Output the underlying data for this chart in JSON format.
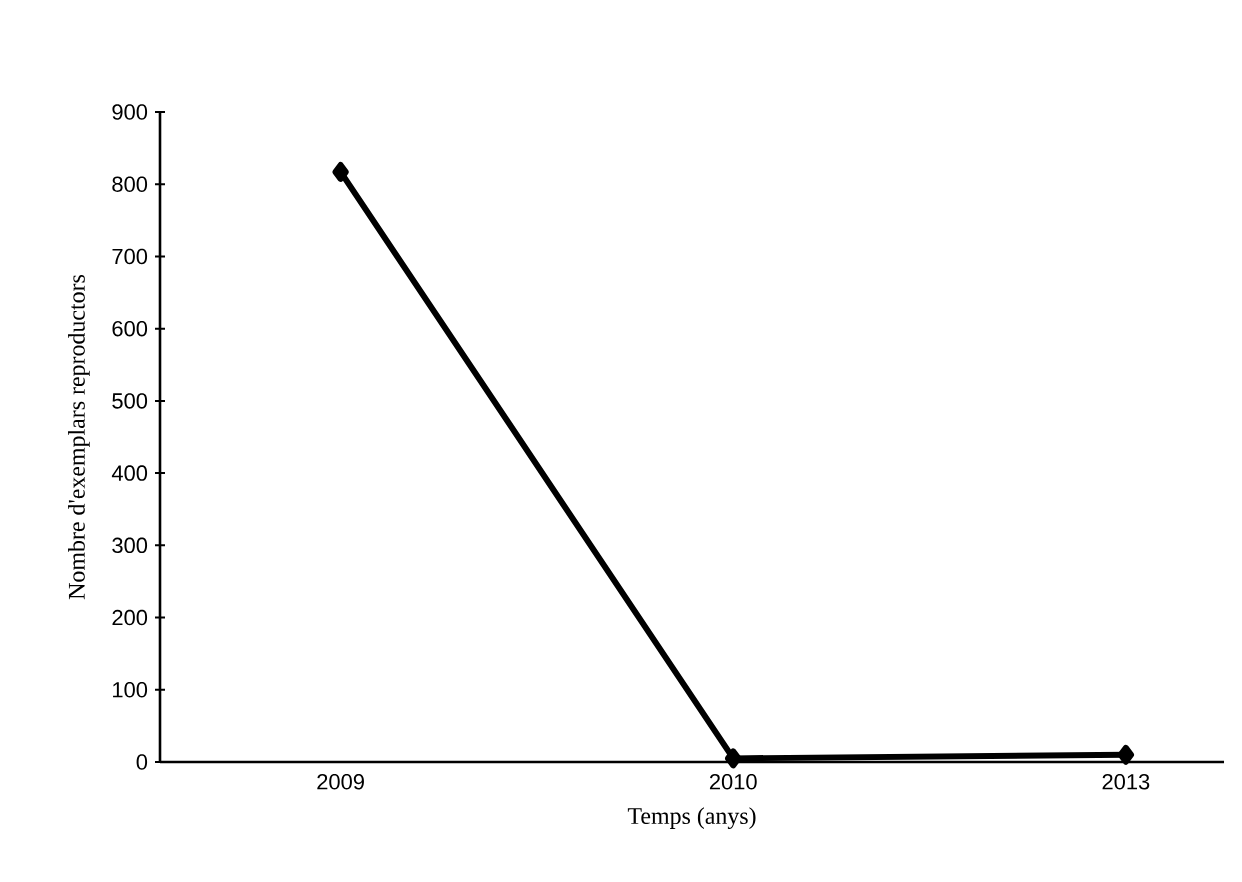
{
  "chart_data": {
    "type": "line",
    "xlabel": "Temps (anys)",
    "ylabel": "Nombre d'exemplars reproductors",
    "categories": [
      "2009",
      "2010",
      "2013"
    ],
    "series": [
      {
        "color": "#000000",
        "values": [
          817,
          5,
          10
        ]
      }
    ],
    "ylim": [
      0,
      900
    ],
    "yticks": [
      0,
      100,
      200,
      300,
      400,
      500,
      600,
      700,
      800,
      900
    ],
    "marker": "diamond",
    "line_style": "solid",
    "grid": false
  }
}
